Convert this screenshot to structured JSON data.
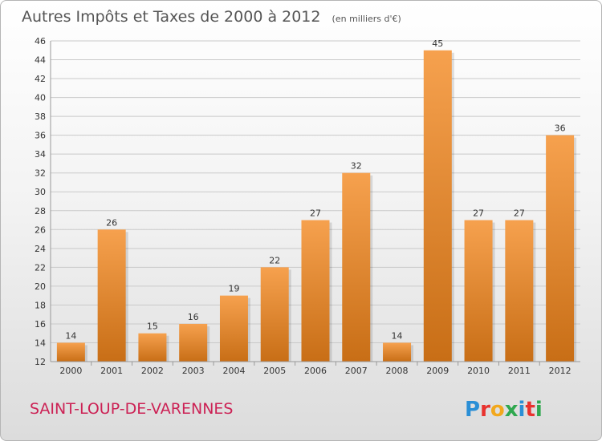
{
  "title": "Autres Impôts et Taxes de 2000 à 2012",
  "subtitle": "(en milliers d'€)",
  "city": "SAINT-LOUP-DE-VARENNES",
  "logo": {
    "text": "Proxiti",
    "letters": [
      {
        "ch": "P",
        "color": "#2b8fd6"
      },
      {
        "ch": "r",
        "color": "#e8322e"
      },
      {
        "ch": "o",
        "color": "#f2a81d"
      },
      {
        "ch": "x",
        "color": "#2fa84f"
      },
      {
        "ch": "i",
        "color": "#2b8fd6"
      },
      {
        "ch": "t",
        "color": "#e8322e"
      },
      {
        "ch": "i",
        "color": "#2fa84f"
      }
    ]
  },
  "colors": {
    "bar_top": "#f6a14e",
    "bar_bottom": "#c86e16",
    "grid": "#c9c9c9",
    "axis": "#999999"
  },
  "chart_data": {
    "type": "bar",
    "categories": [
      "2000",
      "2001",
      "2002",
      "2003",
      "2004",
      "2005",
      "2006",
      "2007",
      "2008",
      "2009",
      "2010",
      "2011",
      "2012"
    ],
    "values": [
      14,
      26,
      15,
      16,
      19,
      22,
      27,
      32,
      14,
      45,
      27,
      27,
      36
    ],
    "ylim": [
      12,
      46
    ],
    "yticks": [
      12,
      14,
      16,
      18,
      20,
      22,
      24,
      26,
      28,
      30,
      32,
      34,
      36,
      38,
      40,
      42,
      44,
      46
    ],
    "grid": true,
    "legend": "none"
  }
}
